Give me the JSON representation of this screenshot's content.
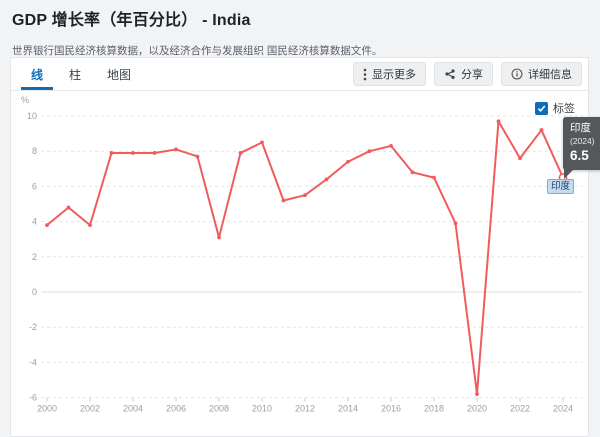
{
  "page": {
    "title": "GDP 增长率（年百分比） - India",
    "subtitle": "世界银行国民经济核算数据，以及经济合作与发展组织 国民经济核算数据文件。"
  },
  "tabs": [
    {
      "label": "线",
      "active": true
    },
    {
      "label": "柱",
      "active": false
    },
    {
      "label": "地图",
      "active": false
    }
  ],
  "toolbar": {
    "more_label": "显示更多",
    "share_label": "分享",
    "details_label": "详细信息"
  },
  "legend": {
    "checkbox_label": "标签",
    "checked": true
  },
  "tooltip": {
    "country": "印度",
    "year_label": "(2024)",
    "value": "6.5"
  },
  "series_point_label": "印度",
  "colors": {
    "line": "#f05c5c",
    "accent_blue": "#0b6fb8",
    "tooltip_bg": "#55585b",
    "grid": "#e4e5e6",
    "zero_line": "#dcdddd",
    "axis_text": "#9aa0a5"
  },
  "chart_data": {
    "type": "line",
    "title": "GDP 增长率（年百分比） - India",
    "x": [
      2000,
      2001,
      2002,
      2003,
      2004,
      2005,
      2006,
      2007,
      2008,
      2009,
      2010,
      2011,
      2012,
      2013,
      2014,
      2015,
      2016,
      2017,
      2018,
      2019,
      2020,
      2021,
      2022,
      2023,
      2024
    ],
    "series": [
      {
        "name": "印度",
        "values": [
          3.8,
          4.8,
          3.8,
          7.9,
          7.9,
          7.9,
          8.1,
          7.7,
          3.1,
          7.9,
          8.5,
          5.2,
          5.5,
          6.4,
          7.4,
          8.0,
          8.3,
          6.8,
          6.5,
          3.9,
          -5.8,
          9.7,
          7.6,
          9.2,
          6.5
        ]
      }
    ],
    "highlight_index": 24,
    "ylabel": "%",
    "ylim": [
      -6,
      10
    ],
    "yticks": [
      10,
      8,
      6,
      4,
      2,
      0,
      -2,
      -4,
      -6
    ],
    "xticks": [
      2000,
      2002,
      2004,
      2006,
      2008,
      2010,
      2012,
      2014,
      2016,
      2018,
      2020,
      2022,
      2024
    ],
    "grid": "dashed-horizontal",
    "legend_position": "none"
  }
}
